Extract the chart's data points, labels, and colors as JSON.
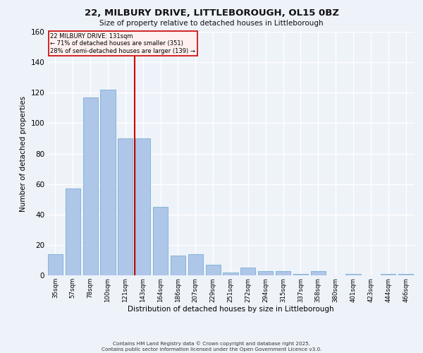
{
  "title": "22, MILBURY DRIVE, LITTLEBOROUGH, OL15 0BZ",
  "subtitle": "Size of property relative to detached houses in Littleborough",
  "xlabel": "Distribution of detached houses by size in Littleborough",
  "ylabel": "Number of detached properties",
  "bar_labels": [
    "35sqm",
    "57sqm",
    "78sqm",
    "100sqm",
    "121sqm",
    "143sqm",
    "164sqm",
    "186sqm",
    "207sqm",
    "229sqm",
    "251sqm",
    "272sqm",
    "294sqm",
    "315sqm",
    "337sqm",
    "358sqm",
    "380sqm",
    "401sqm",
    "423sqm",
    "444sqm",
    "466sqm"
  ],
  "bar_values": [
    14,
    57,
    117,
    122,
    90,
    90,
    45,
    13,
    14,
    7,
    2,
    5,
    3,
    3,
    1,
    3,
    0,
    1,
    0,
    1,
    1
  ],
  "bar_color": "#aec6e8",
  "bar_edge_color": "#7aafd4",
  "property_label": "22 MILBURY DRIVE: 131sqm",
  "annotation_line1": "← 71% of detached houses are smaller (351)",
  "annotation_line2": "28% of semi-detached houses are larger (139) →",
  "vline_color": "#cc0000",
  "vline_x_index": 4.545,
  "background_color": "#eef2f9",
  "grid_color": "#ffffff",
  "ylim": [
    0,
    160
  ],
  "yticks": [
    0,
    20,
    40,
    60,
    80,
    100,
    120,
    140,
    160
  ],
  "footer": "Contains HM Land Registry data © Crown copyright and database right 2025.\nContains public sector information licensed under the Open Government Licence v3.0.",
  "annotation_box_color": "#fff0f0",
  "annotation_box_edge": "#cc0000"
}
